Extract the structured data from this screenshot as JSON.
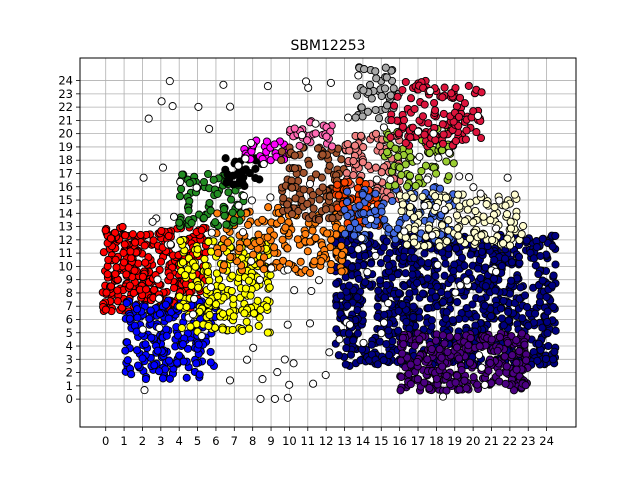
{
  "chart_data": {
    "type": "scatter",
    "title": "SBM12253",
    "xlabel": "",
    "ylabel": "",
    "xlim": [
      -1.4,
      25.6
    ],
    "ylim": [
      -2.1,
      25.7
    ],
    "x_ticks": [
      0,
      1,
      2,
      3,
      4,
      5,
      6,
      7,
      8,
      9,
      10,
      11,
      12,
      13,
      14,
      15,
      16,
      17,
      18,
      19,
      20,
      21,
      22,
      23,
      24
    ],
    "y_ticks": [
      0,
      1,
      2,
      3,
      4,
      5,
      6,
      7,
      8,
      9,
      10,
      11,
      12,
      13,
      14,
      15,
      16,
      17,
      18,
      19,
      20,
      21,
      22,
      23,
      24
    ],
    "grid": true,
    "legend": "none",
    "marker": "circle with black edge",
    "clusters": [
      {
        "color": "#000080",
        "x_range": [
          12.5,
          24.5
        ],
        "y_range": [
          2.5,
          12.5
        ],
        "approx_count": 900
      },
      {
        "color": "#4b0082",
        "x_range": [
          16.0,
          23.0
        ],
        "y_range": [
          0.6,
          5.0
        ],
        "approx_count": 300
      },
      {
        "color": "#ff0000",
        "x_range": [
          -0.2,
          5.5
        ],
        "y_range": [
          6.5,
          13.0
        ],
        "approx_count": 350
      },
      {
        "color": "#0000ff",
        "x_range": [
          1.0,
          6.0
        ],
        "y_range": [
          1.5,
          7.5
        ],
        "approx_count": 200
      },
      {
        "color": "#ffff00",
        "x_range": [
          4.0,
          9.0
        ],
        "y_range": [
          5.0,
          12.0
        ],
        "approx_count": 220
      },
      {
        "color": "#ff7f0e",
        "x_range": [
          6.0,
          13.0
        ],
        "y_range": [
          9.5,
          14.5
        ],
        "approx_count": 160
      },
      {
        "color": "#228b22",
        "x_range": [
          4.0,
          7.5
        ],
        "y_range": [
          13.0,
          17.0
        ],
        "approx_count": 80
      },
      {
        "color": "#000000",
        "x_range": [
          6.5,
          8.5
        ],
        "y_range": [
          16.0,
          18.2
        ],
        "approx_count": 35
      },
      {
        "color": "#ff00ff",
        "x_range": [
          7.5,
          10.0
        ],
        "y_range": [
          18.0,
          19.5
        ],
        "approx_count": 30
      },
      {
        "color": "#a0522d",
        "x_range": [
          9.5,
          13.0
        ],
        "y_range": [
          13.5,
          19.0
        ],
        "approx_count": 110
      },
      {
        "color": "#ff69b4",
        "x_range": [
          10.0,
          12.5
        ],
        "y_range": [
          19.0,
          21.0
        ],
        "approx_count": 30
      },
      {
        "color": "#f08080",
        "x_range": [
          13.0,
          16.0
        ],
        "y_range": [
          15.0,
          20.0
        ],
        "approx_count": 90
      },
      {
        "color": "#ff4500",
        "x_range": [
          12.5,
          15.0
        ],
        "y_range": [
          13.0,
          16.5
        ],
        "approx_count": 60
      },
      {
        "color": "#4169e1",
        "x_range": [
          13.0,
          19.0
        ],
        "y_range": [
          12.0,
          16.0
        ],
        "approx_count": 110
      },
      {
        "color": "#9acd32",
        "x_range": [
          15.0,
          19.0
        ],
        "y_range": [
          16.0,
          20.5
        ],
        "approx_count": 80
      },
      {
        "color": "#fffdd0",
        "x_range": [
          16.0,
          23.0
        ],
        "y_range": [
          11.5,
          15.5
        ],
        "approx_count": 140
      },
      {
        "color": "#a9a9a9",
        "x_range": [
          13.5,
          16.0
        ],
        "y_range": [
          21.0,
          25.0
        ],
        "approx_count": 45
      },
      {
        "color": "#dc143c",
        "x_range": [
          15.5,
          20.5
        ],
        "y_range": [
          19.0,
          24.0
        ],
        "approx_count": 130
      },
      {
        "color": "#ffffff",
        "x_range": [
          2.0,
          22.0
        ],
        "y_range": [
          0.0,
          24.6
        ],
        "approx_count": 120
      }
    ]
  }
}
